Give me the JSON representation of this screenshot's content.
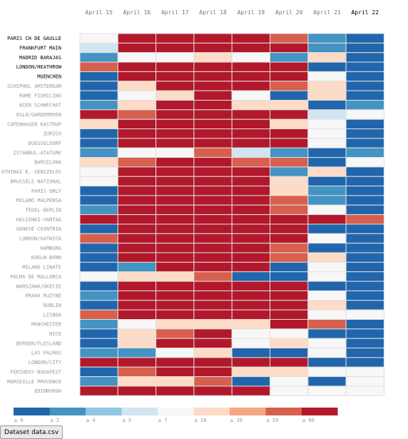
{
  "chart_data": {
    "type": "heatmap",
    "days": [
      "April 15",
      "April 16",
      "April 17",
      "April 18",
      "April 19",
      "April 20",
      "April 21",
      "April 22"
    ],
    "active_day": "April 22",
    "airports": [
      "PARIS CH DE GAULLE",
      "FRANKFURT MAIN",
      "MADRID BARAJAS",
      "LONDON/HEATHROW",
      "MUENCHEN",
      "SCHIPHOL AMSTERDAM",
      "ROME FIUMICINO",
      "WIEN SCHWECHAT",
      "OSLO/GARDERMOEN",
      "COPENHAGEN KASTRUP",
      "ZURICH",
      "DUESSELDORF",
      "ISTANBUL-ATATURK",
      "BARCELONA",
      "ATHINAI E. VENIZELOS",
      "BRUSSELS NATIONAL",
      "PARIS ORLY",
      "MILANO MALPENSA",
      "TEGEL-BERLIN",
      "HELSINKI-VANTAA",
      "GENEVE COINTRIN",
      "LONDON/GATWICK",
      "HAMBURG",
      "KOELN-BONN",
      "MILANO LINATE",
      "PALMA DE MALLORCA",
      "WARSZAWA/OKECIE",
      "PRAHA RUZYNE",
      "DUBLIN",
      "LISBOA",
      "MANCHESTER",
      "NICE",
      "BERGEN/FLESLAND",
      "LAS PALMAS",
      "LONDON/CITY",
      "FERIHEGY-BUDAPEST",
      "MARSEILLE PROVENCE",
      "EDINBURGH"
    ],
    "active_airports": [
      "PARIS CH DE GAULLE",
      "FRANKFURT MAIN",
      "MADRID BARAJAS",
      "LONDON/HEATHROW",
      "MUENCHEN"
    ],
    "values": [
      [
        8,
        95,
        95,
        95,
        95,
        65,
        3,
        0
      ],
      [
        5,
        95,
        95,
        95,
        95,
        95,
        3,
        0
      ],
      [
        3,
        8,
        15,
        22,
        15,
        2,
        25,
        0
      ],
      [
        65,
        95,
        95,
        95,
        95,
        95,
        0,
        0
      ],
      [
        0,
        95,
        95,
        95,
        95,
        95,
        15,
        0
      ],
      [
        0,
        30,
        95,
        95,
        95,
        65,
        30,
        0
      ],
      [
        0,
        8,
        25,
        95,
        15,
        0,
        20,
        0
      ],
      [
        3,
        25,
        95,
        95,
        30,
        25,
        0,
        3
      ],
      [
        95,
        65,
        95,
        95,
        95,
        95,
        5,
        15
      ],
      [
        25,
        95,
        95,
        95,
        95,
        25,
        15,
        0
      ],
      [
        0,
        95,
        95,
        95,
        95,
        95,
        8,
        0
      ],
      [
        0,
        95,
        95,
        95,
        95,
        95,
        8,
        0
      ],
      [
        3,
        8,
        15,
        65,
        5,
        2,
        0,
        2
      ],
      [
        25,
        65,
        95,
        95,
        65,
        65,
        0,
        12
      ],
      [
        8,
        95,
        95,
        95,
        95,
        3,
        25,
        0
      ],
      [
        8,
        95,
        95,
        95,
        95,
        25,
        0,
        0
      ],
      [
        0,
        95,
        95,
        95,
        95,
        25,
        2,
        0
      ],
      [
        0,
        95,
        95,
        95,
        95,
        65,
        2,
        0
      ],
      [
        3,
        95,
        95,
        95,
        95,
        65,
        8,
        0
      ],
      [
        95,
        95,
        95,
        95,
        95,
        95,
        95,
        65
      ],
      [
        0,
        95,
        95,
        95,
        95,
        95,
        0,
        0
      ],
      [
        65,
        95,
        95,
        95,
        95,
        95,
        15,
        0
      ],
      [
        0,
        95,
        95,
        95,
        95,
        65,
        0,
        0
      ],
      [
        0,
        95,
        95,
        95,
        95,
        65,
        25,
        0
      ],
      [
        0,
        2,
        95,
        95,
        95,
        0,
        15,
        0
      ],
      [
        8,
        25,
        25,
        65,
        0,
        0,
        8,
        0
      ],
      [
        0,
        95,
        95,
        95,
        95,
        95,
        0,
        0
      ],
      [
        2,
        95,
        95,
        95,
        95,
        95,
        15,
        0
      ],
      [
        0,
        95,
        95,
        95,
        95,
        95,
        20,
        0
      ],
      [
        65,
        95,
        95,
        95,
        95,
        95,
        15,
        8
      ],
      [
        3,
        8,
        25,
        25,
        25,
        95,
        65,
        0
      ],
      [
        0,
        25,
        65,
        95,
        15,
        8,
        0,
        0
      ],
      [
        0,
        30,
        95,
        95,
        15,
        25,
        8,
        0
      ],
      [
        3,
        2,
        15,
        25,
        0,
        0,
        8,
        0
      ],
      [
        95,
        95,
        95,
        95,
        95,
        95,
        0,
        0
      ],
      [
        0,
        65,
        95,
        95,
        25,
        25,
        15,
        8
      ],
      [
        3,
        25,
        25,
        65,
        0,
        8,
        0,
        8
      ],
      [
        95,
        95,
        95,
        95,
        95,
        8,
        8,
        8
      ]
    ],
    "legend": {
      "labels": [
        "≥ 0",
        "≥ 2",
        "≥ 4",
        "≥ 5",
        "≥ 7",
        "≥ 18",
        "≥ 39",
        "≥ 59",
        "≥ 80"
      ],
      "thresholds": [
        0,
        2,
        4,
        5,
        7,
        18,
        39,
        59,
        80
      ],
      "colors": [
        "#2166ac",
        "#4393c3",
        "#92c5de",
        "#d1e5f0",
        "#f7f7f7",
        "#fddbc7",
        "#f4a582",
        "#d6604d",
        "#b2182b"
      ]
    }
  },
  "dataset_button": {
    "label": "Dataset data.csv"
  }
}
